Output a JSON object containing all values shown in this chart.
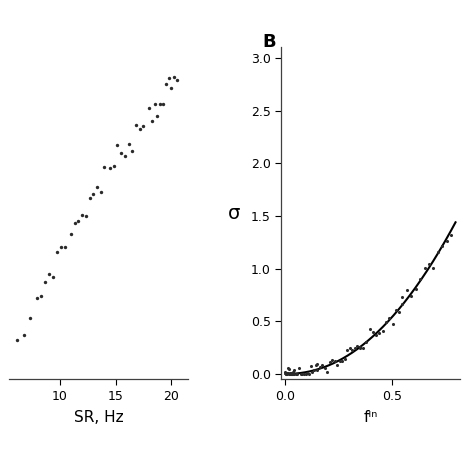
{
  "panel_B_label": "B",
  "left_panel": {
    "xlabel": "SR, Hz",
    "xticks": [
      10,
      15,
      20
    ],
    "xlim": [
      5.5,
      21.5
    ],
    "ylim": [
      1.55,
      3.45
    ],
    "scatter_color": "#2a2a2a",
    "scatter_size": 6
  },
  "right_panel": {
    "ylabel": "σ",
    "xlabel": "fᴵⁿ",
    "xticks": [
      0.0,
      0.5
    ],
    "yticks": [
      0.0,
      0.5,
      1.0,
      1.5,
      2.0,
      2.5,
      3.0
    ],
    "xlim": [
      -0.02,
      0.82
    ],
    "ylim": [
      -0.05,
      3.1
    ],
    "scatter_color": "#2a2a2a",
    "scatter_size": 5,
    "line_color": "#000000",
    "line_width": 1.5
  },
  "background_color": "#ffffff",
  "tick_fontsize": 9,
  "label_fontsize": 11
}
